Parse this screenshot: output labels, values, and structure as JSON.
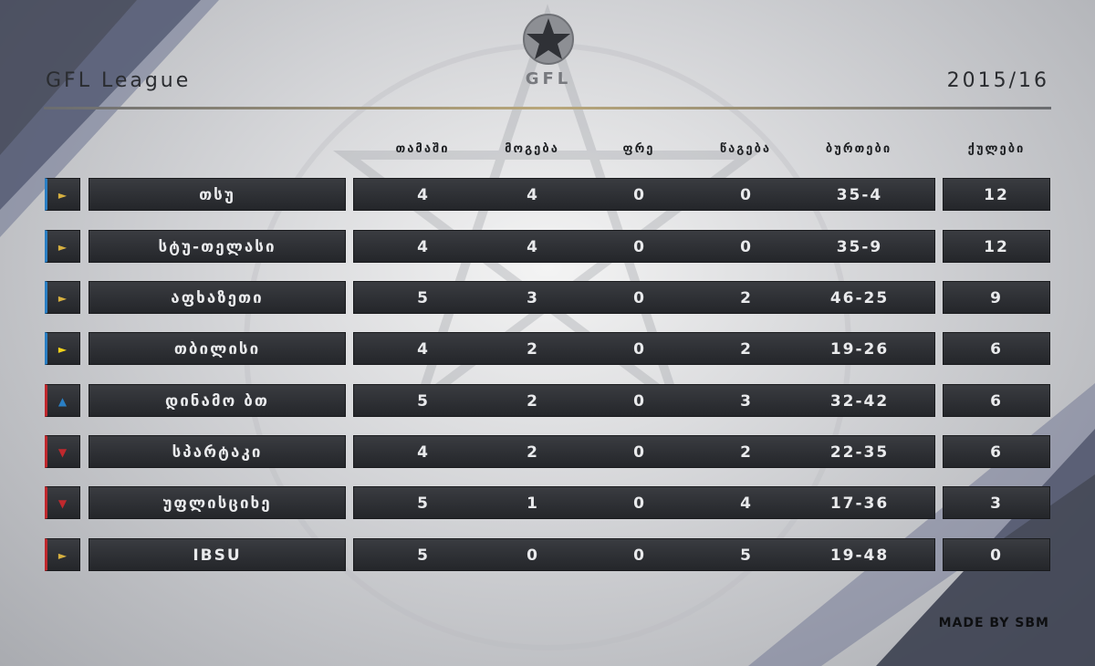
{
  "header": {
    "title": "GFL League",
    "season": "2015/16",
    "logo_text": "GFL"
  },
  "columns": {
    "played": "თამაში",
    "won": "მოგება",
    "draw": "ფრე",
    "lost": "წაგება",
    "goals": "ბურთები",
    "points": "ქულები"
  },
  "colors": {
    "accent_gold": "#b9a77a",
    "up": "#2a7fc4",
    "down": "#c0282d",
    "same_gold": "#d7b040",
    "same_yellow": "#f2d21a"
  },
  "standings": [
    {
      "team": "თსუ",
      "played": "4",
      "won": "4",
      "draw": "0",
      "lost": "0",
      "goals": "35-4",
      "points": "12",
      "trend": "same",
      "marker": "►",
      "marker_color": "#d7b040",
      "bar_color": "#2a7fc4"
    },
    {
      "team": "სტუ-თელასი",
      "played": "4",
      "won": "4",
      "draw": "0",
      "lost": "0",
      "goals": "35-9",
      "points": "12",
      "trend": "same",
      "marker": "►",
      "marker_color": "#d7b040",
      "bar_color": "#2a7fc4"
    },
    {
      "team": "აფხაზეთი",
      "played": "5",
      "won": "3",
      "draw": "0",
      "lost": "2",
      "goals": "46-25",
      "points": "9",
      "trend": "same",
      "marker": "►",
      "marker_color": "#d7b040",
      "bar_color": "#2a7fc4"
    },
    {
      "team": "თბილისი",
      "played": "4",
      "won": "2",
      "draw": "0",
      "lost": "2",
      "goals": "19-26",
      "points": "6",
      "trend": "same",
      "marker": "►",
      "marker_color": "#f2d21a",
      "bar_color": "#2a7fc4"
    },
    {
      "team": "დინამო ბთ",
      "played": "5",
      "won": "2",
      "draw": "0",
      "lost": "3",
      "goals": "32-42",
      "points": "6",
      "trend": "up",
      "marker": "▲",
      "marker_color": "#2a7fc4",
      "bar_color": "#c0282d"
    },
    {
      "team": "სპარტაკი",
      "played": "4",
      "won": "2",
      "draw": "0",
      "lost": "2",
      "goals": "22-35",
      "points": "6",
      "trend": "down",
      "marker": "▼",
      "marker_color": "#c0282d",
      "bar_color": "#c0282d"
    },
    {
      "team": "უფლისციხე",
      "played": "5",
      "won": "1",
      "draw": "0",
      "lost": "4",
      "goals": "17-36",
      "points": "3",
      "trend": "down",
      "marker": "▼",
      "marker_color": "#c0282d",
      "bar_color": "#c0282d"
    },
    {
      "team": "IBSU",
      "played": "5",
      "won": "0",
      "draw": "0",
      "lost": "5",
      "goals": "19-48",
      "points": "0",
      "trend": "same",
      "marker": "►",
      "marker_color": "#d7b040",
      "bar_color": "#c0282d"
    }
  ],
  "footer": {
    "made_by": "MADE BY SBM"
  }
}
